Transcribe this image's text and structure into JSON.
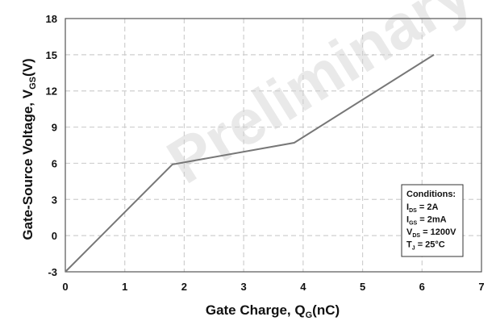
{
  "watermark": "Preliminary",
  "chart_data": {
    "type": "line",
    "x": [
      0,
      1.8,
      3.85,
      6.2
    ],
    "y": [
      -3,
      5.9,
      7.7,
      15
    ],
    "xlim": [
      0,
      7
    ],
    "ylim": [
      -3,
      18
    ],
    "xticks": [
      "0",
      "1",
      "2",
      "3",
      "4",
      "5",
      "6",
      "7"
    ],
    "yticks": [
      "-3",
      "0",
      "3",
      "6",
      "9",
      "12",
      "15",
      "18"
    ],
    "xlabel": {
      "main": "Gate Charge, Q",
      "sub": "G",
      "unit": "(nC)"
    },
    "ylabel": {
      "main": "Gate-Source Voltage, V",
      "sub": "GS",
      "unit": "(V)"
    },
    "grid": true,
    "line_color": "#777777",
    "grid_color": "#cfcfcf",
    "conditions": {
      "title": "Conditions:",
      "lines": [
        {
          "main": "I",
          "sub": "DS",
          "rest": " = 2A"
        },
        {
          "main": "I",
          "sub": "GS",
          "rest": " = 2mA"
        },
        {
          "main": "V",
          "sub": "DS",
          "rest": " = 1200V"
        },
        {
          "main": "T",
          "sub": "J",
          "rest": " = 25°C"
        }
      ]
    }
  }
}
